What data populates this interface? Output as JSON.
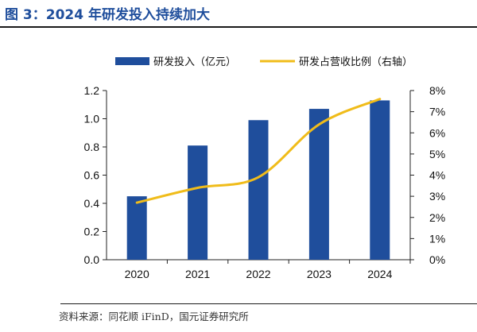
{
  "title": "图 3：2024 年研发投入持续加大",
  "source": "资料来源：同花顺 iFinD，国元证券研究所",
  "colors": {
    "bar": "#1f4e9c",
    "line": "#f0bc1a",
    "title": "#1f4e9c"
  },
  "chart_data": {
    "type": "bar",
    "categories": [
      "2020",
      "2021",
      "2022",
      "2023",
      "2024"
    ],
    "series": [
      {
        "name": "研发投入（亿元）",
        "type": "bar",
        "axis": "left",
        "values": [
          0.45,
          0.81,
          0.99,
          1.07,
          1.13
        ]
      },
      {
        "name": "研发占营收比例（右轴）",
        "type": "line",
        "axis": "right",
        "values": [
          2.7,
          3.4,
          3.9,
          6.4,
          7.6
        ]
      }
    ],
    "y_left": {
      "lim": [
        0,
        1.2
      ],
      "ticks": [
        "0.0",
        "0.2",
        "0.4",
        "0.6",
        "0.8",
        "1.0",
        "1.2"
      ]
    },
    "y_right": {
      "lim": [
        0,
        8
      ],
      "ticks": [
        "0%",
        "1%",
        "2%",
        "3%",
        "4%",
        "5%",
        "6%",
        "7%",
        "8%"
      ]
    },
    "grid": false,
    "legend": "top"
  }
}
